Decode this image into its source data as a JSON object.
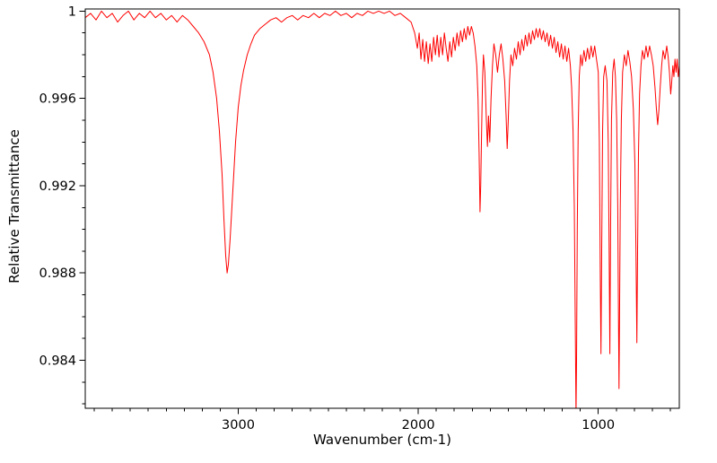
{
  "chart_data": {
    "type": "line",
    "title": "",
    "xlabel": "Wavenumber (cm-1)",
    "ylabel": "Relative Transmittance",
    "x_reversed": true,
    "xlim": [
      3850,
      550
    ],
    "ylim": [
      0.9818,
      1.0001
    ],
    "x_ticks": [
      3000,
      2000,
      1000
    ],
    "x_tick_labels": [
      "3000",
      "2000",
      "1000"
    ],
    "minor_x_step": 100,
    "y_ticks": [
      0.984,
      0.988,
      0.992,
      0.996,
      1
    ],
    "y_tick_labels": [
      "0.984",
      "0.988",
      "0.992",
      "0.996",
      "1"
    ],
    "minor_y_step": 0.001,
    "line_color": "#ff0000",
    "grid": false,
    "legend": "none",
    "points": [
      [
        3850,
        0.9997
      ],
      [
        3820,
        0.9999
      ],
      [
        3790,
        0.9996
      ],
      [
        3760,
        1.0
      ],
      [
        3730,
        0.9997
      ],
      [
        3700,
        0.9999
      ],
      [
        3670,
        0.9995
      ],
      [
        3640,
        0.9998
      ],
      [
        3610,
        1.0
      ],
      [
        3580,
        0.9996
      ],
      [
        3550,
        0.9999
      ],
      [
        3520,
        0.9997
      ],
      [
        3490,
        1.0
      ],
      [
        3460,
        0.9997
      ],
      [
        3430,
        0.9999
      ],
      [
        3400,
        0.9996
      ],
      [
        3370,
        0.9998
      ],
      [
        3340,
        0.9995
      ],
      [
        3310,
        0.9998
      ],
      [
        3280,
        0.9996
      ],
      [
        3250,
        0.9993
      ],
      [
        3220,
        0.999
      ],
      [
        3190,
        0.9986
      ],
      [
        3160,
        0.998
      ],
      [
        3140,
        0.9972
      ],
      [
        3120,
        0.996
      ],
      [
        3105,
        0.9945
      ],
      [
        3090,
        0.9925
      ],
      [
        3080,
        0.9905
      ],
      [
        3070,
        0.9888
      ],
      [
        3062,
        0.988
      ],
      [
        3055,
        0.9884
      ],
      [
        3045,
        0.9896
      ],
      [
        3030,
        0.9918
      ],
      [
        3015,
        0.994
      ],
      [
        3000,
        0.9956
      ],
      [
        2985,
        0.9966
      ],
      [
        2970,
        0.9973
      ],
      [
        2950,
        0.998
      ],
      [
        2930,
        0.9985
      ],
      [
        2910,
        0.9989
      ],
      [
        2880,
        0.9992
      ],
      [
        2850,
        0.9994
      ],
      [
        2820,
        0.9996
      ],
      [
        2790,
        0.9997
      ],
      [
        2760,
        0.9995
      ],
      [
        2730,
        0.9997
      ],
      [
        2700,
        0.9998
      ],
      [
        2670,
        0.9996
      ],
      [
        2640,
        0.9998
      ],
      [
        2610,
        0.9997
      ],
      [
        2580,
        0.9999
      ],
      [
        2550,
        0.9997
      ],
      [
        2520,
        0.9999
      ],
      [
        2490,
        0.9998
      ],
      [
        2460,
        1.0
      ],
      [
        2430,
        0.9998
      ],
      [
        2400,
        0.9999
      ],
      [
        2370,
        0.9997
      ],
      [
        2340,
        0.9999
      ],
      [
        2310,
        0.9998
      ],
      [
        2280,
        1.0
      ],
      [
        2250,
        0.9999
      ],
      [
        2220,
        1.0
      ],
      [
        2190,
        0.9999
      ],
      [
        2160,
        1.0
      ],
      [
        2130,
        0.9998
      ],
      [
        2100,
        0.9999
      ],
      [
        2070,
        0.9997
      ],
      [
        2040,
        0.9995
      ],
      [
        2020,
        0.999
      ],
      [
        2005,
        0.9983
      ],
      [
        1995,
        0.999
      ],
      [
        1985,
        0.9978
      ],
      [
        1975,
        0.9987
      ],
      [
        1965,
        0.9977
      ],
      [
        1955,
        0.9986
      ],
      [
        1945,
        0.9976
      ],
      [
        1935,
        0.9985
      ],
      [
        1925,
        0.9977
      ],
      [
        1915,
        0.9988
      ],
      [
        1905,
        0.998
      ],
      [
        1895,
        0.9989
      ],
      [
        1885,
        0.9979
      ],
      [
        1875,
        0.9988
      ],
      [
        1865,
        0.998
      ],
      [
        1855,
        0.999
      ],
      [
        1845,
        0.9983
      ],
      [
        1835,
        0.9977
      ],
      [
        1825,
        0.9986
      ],
      [
        1815,
        0.9979
      ],
      [
        1805,
        0.9988
      ],
      [
        1795,
        0.9982
      ],
      [
        1785,
        0.999
      ],
      [
        1775,
        0.9984
      ],
      [
        1765,
        0.9991
      ],
      [
        1755,
        0.9986
      ],
      [
        1745,
        0.9992
      ],
      [
        1735,
        0.9987
      ],
      [
        1725,
        0.9993
      ],
      [
        1715,
        0.9989
      ],
      [
        1705,
        0.9993
      ],
      [
        1695,
        0.999
      ],
      [
        1685,
        0.9984
      ],
      [
        1675,
        0.9975
      ],
      [
        1668,
        0.996
      ],
      [
        1662,
        0.9935
      ],
      [
        1657,
        0.9908
      ],
      [
        1653,
        0.992
      ],
      [
        1648,
        0.9945
      ],
      [
        1643,
        0.9968
      ],
      [
        1638,
        0.998
      ],
      [
        1630,
        0.9972
      ],
      [
        1622,
        0.995
      ],
      [
        1616,
        0.9938
      ],
      [
        1610,
        0.9952
      ],
      [
        1603,
        0.994
      ],
      [
        1596,
        0.996
      ],
      [
        1588,
        0.9975
      ],
      [
        1580,
        0.9985
      ],
      [
        1570,
        0.998
      ],
      [
        1560,
        0.9972
      ],
      [
        1550,
        0.998
      ],
      [
        1540,
        0.9985
      ],
      [
        1530,
        0.9978
      ],
      [
        1520,
        0.9968
      ],
      [
        1512,
        0.9952
      ],
      [
        1506,
        0.9937
      ],
      [
        1500,
        0.995
      ],
      [
        1493,
        0.9968
      ],
      [
        1485,
        0.998
      ],
      [
        1475,
        0.9975
      ],
      [
        1465,
        0.9983
      ],
      [
        1455,
        0.9978
      ],
      [
        1445,
        0.9986
      ],
      [
        1435,
        0.998
      ],
      [
        1425,
        0.9987
      ],
      [
        1415,
        0.9982
      ],
      [
        1405,
        0.9989
      ],
      [
        1395,
        0.9984
      ],
      [
        1385,
        0.999
      ],
      [
        1375,
        0.9985
      ],
      [
        1365,
        0.9991
      ],
      [
        1355,
        0.9987
      ],
      [
        1345,
        0.9992
      ],
      [
        1335,
        0.9988
      ],
      [
        1325,
        0.9992
      ],
      [
        1315,
        0.9987
      ],
      [
        1305,
        0.9991
      ],
      [
        1295,
        0.9986
      ],
      [
        1285,
        0.999
      ],
      [
        1275,
        0.9984
      ],
      [
        1265,
        0.9989
      ],
      [
        1255,
        0.9983
      ],
      [
        1245,
        0.9988
      ],
      [
        1235,
        0.9981
      ],
      [
        1225,
        0.9986
      ],
      [
        1215,
        0.9979
      ],
      [
        1205,
        0.9985
      ],
      [
        1195,
        0.9978
      ],
      [
        1185,
        0.9984
      ],
      [
        1175,
        0.9977
      ],
      [
        1165,
        0.9983
      ],
      [
        1155,
        0.9975
      ],
      [
        1148,
        0.9965
      ],
      [
        1140,
        0.9945
      ],
      [
        1133,
        0.991
      ],
      [
        1128,
        0.986
      ],
      [
        1124,
        0.9815
      ],
      [
        1121,
        0.984
      ],
      [
        1117,
        0.99
      ],
      [
        1112,
        0.9945
      ],
      [
        1106,
        0.997
      ],
      [
        1098,
        0.998
      ],
      [
        1090,
        0.9975
      ],
      [
        1080,
        0.9982
      ],
      [
        1070,
        0.9977
      ],
      [
        1060,
        0.9983
      ],
      [
        1050,
        0.9978
      ],
      [
        1040,
        0.9984
      ],
      [
        1030,
        0.9979
      ],
      [
        1020,
        0.9984
      ],
      [
        1010,
        0.9978
      ],
      [
        1000,
        0.9972
      ],
      [
        994,
        0.994
      ],
      [
        989,
        0.988
      ],
      [
        985,
        0.9843
      ],
      [
        981,
        0.989
      ],
      [
        976,
        0.9945
      ],
      [
        970,
        0.997
      ],
      [
        962,
        0.9975
      ],
      [
        952,
        0.9968
      ],
      [
        945,
        0.994
      ],
      [
        940,
        0.989
      ],
      [
        936,
        0.9843
      ],
      [
        932,
        0.99
      ],
      [
        927,
        0.995
      ],
      [
        920,
        0.9972
      ],
      [
        912,
        0.9978
      ],
      [
        905,
        0.997
      ],
      [
        898,
        0.995
      ],
      [
        892,
        0.991
      ],
      [
        888,
        0.986
      ],
      [
        885,
        0.9827
      ],
      [
        882,
        0.986
      ],
      [
        878,
        0.991
      ],
      [
        872,
        0.995
      ],
      [
        865,
        0.9972
      ],
      [
        855,
        0.998
      ],
      [
        845,
        0.9975
      ],
      [
        835,
        0.9982
      ],
      [
        825,
        0.9977
      ],
      [
        815,
        0.997
      ],
      [
        805,
        0.9955
      ],
      [
        797,
        0.993
      ],
      [
        791,
        0.989
      ],
      [
        786,
        0.9848
      ],
      [
        782,
        0.989
      ],
      [
        777,
        0.9935
      ],
      [
        771,
        0.9962
      ],
      [
        763,
        0.9975
      ],
      [
        755,
        0.9982
      ],
      [
        745,
        0.9978
      ],
      [
        735,
        0.9984
      ],
      [
        725,
        0.9979
      ],
      [
        715,
        0.9984
      ],
      [
        705,
        0.998
      ],
      [
        695,
        0.9975
      ],
      [
        685,
        0.9965
      ],
      [
        677,
        0.9955
      ],
      [
        670,
        0.9948
      ],
      [
        663,
        0.9955
      ],
      [
        656,
        0.9965
      ],
      [
        648,
        0.9975
      ],
      [
        640,
        0.9982
      ],
      [
        630,
        0.9978
      ],
      [
        620,
        0.9984
      ],
      [
        612,
        0.9979
      ],
      [
        605,
        0.9972
      ],
      [
        598,
        0.9962
      ],
      [
        592,
        0.9968
      ],
      [
        586,
        0.9975
      ],
      [
        580,
        0.997
      ],
      [
        574,
        0.9978
      ],
      [
        568,
        0.9972
      ],
      [
        562,
        0.9978
      ],
      [
        556,
        0.997
      ],
      [
        550,
        0.9975
      ]
    ]
  }
}
